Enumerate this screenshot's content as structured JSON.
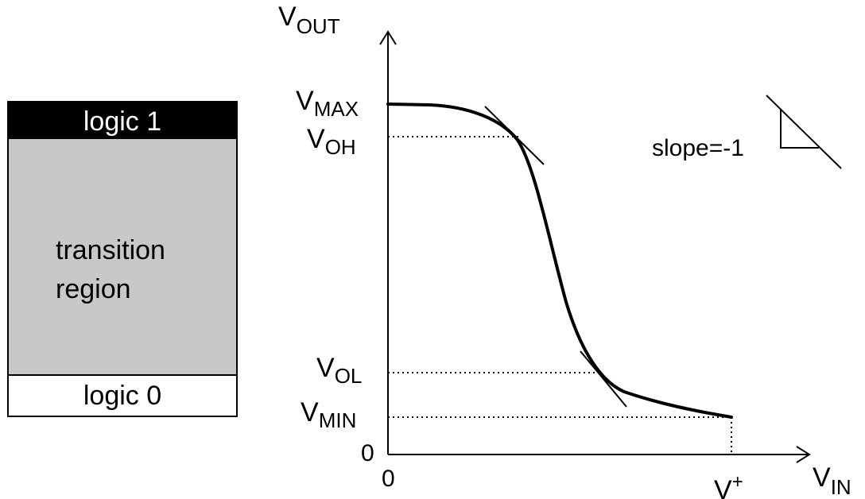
{
  "logic_levels": {
    "logic1": "logic 1",
    "transition_line1": "transition",
    "transition_line2": "region",
    "logic0": "logic 0",
    "colors": {
      "logic1_fill": "#000000",
      "transition_fill": "#c8c8c8",
      "logic0_fill": "#ffffff"
    }
  },
  "transfer_curve": {
    "y_axis": {
      "main": "V",
      "sub": "OUT"
    },
    "x_axis": {
      "main": "V",
      "sub": "IN"
    },
    "y_levels": [
      {
        "main": "V",
        "sub": "MAX"
      },
      {
        "main": "V",
        "sub": "OH"
      },
      {
        "main": "V",
        "sub": "OL"
      },
      {
        "main": "V",
        "sub": "MIN"
      }
    ],
    "y_zero": "0",
    "x_zero": "0",
    "x_vplus": {
      "main": "V",
      "sup": "+"
    },
    "slope_label": "slope=-1"
  }
}
